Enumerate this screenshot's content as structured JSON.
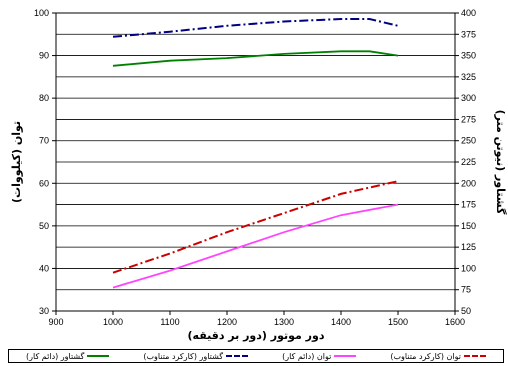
{
  "chart_data": {
    "type": "line",
    "xlabel": "دور موتور (دور بر دقیقه)",
    "ylabel_left": "توان (کیلووات)",
    "ylabel_right": "گشتاور (نیوتن متر)",
    "x_ticks": [
      900,
      1000,
      1100,
      1200,
      1300,
      1400,
      1500,
      1600
    ],
    "y_left_ticks": [
      30,
      40,
      50,
      60,
      70,
      80,
      90,
      100
    ],
    "y_right_ticks": [
      50,
      75,
      100,
      125,
      150,
      175,
      200,
      225,
      250,
      275,
      300,
      325,
      350,
      375,
      400
    ],
    "xlim": [
      900,
      1600
    ],
    "ylim_left": [
      30,
      100
    ],
    "ylim_right": [
      50,
      400
    ],
    "grid": "horizontal",
    "legend_position": "bottom",
    "series": [
      {
        "name": "توان (کارکرد متناوب)",
        "axis": "left",
        "color": "#cc0000",
        "dash": "dash-dot",
        "x": [
          1000,
          1100,
          1200,
          1300,
          1400,
          1500
        ],
        "y": [
          39,
          43.5,
          48.5,
          53,
          57.5,
          60.5
        ]
      },
      {
        "name": "توان (دائم کار)",
        "axis": "left",
        "color": "#ff44ff",
        "dash": "solid",
        "x": [
          1000,
          1100,
          1200,
          1300,
          1400,
          1500
        ],
        "y": [
          35.5,
          39.5,
          44,
          48.5,
          52.5,
          55
        ]
      },
      {
        "name": "گشتاور (کارکرد متناوب)",
        "axis": "right",
        "color": "#000080",
        "dash": "dash-dot",
        "x": [
          1000,
          1100,
          1200,
          1300,
          1400,
          1450,
          1500
        ],
        "y": [
          372,
          378,
          385,
          390,
          393,
          393,
          385
        ]
      },
      {
        "name": "گشتاور (دائم کار)",
        "axis": "right",
        "color": "#008000",
        "dash": "solid",
        "x": [
          1000,
          1100,
          1200,
          1300,
          1400,
          1450,
          1500
        ],
        "y": [
          338,
          344,
          347,
          352,
          355,
          355,
          350
        ]
      }
    ]
  }
}
